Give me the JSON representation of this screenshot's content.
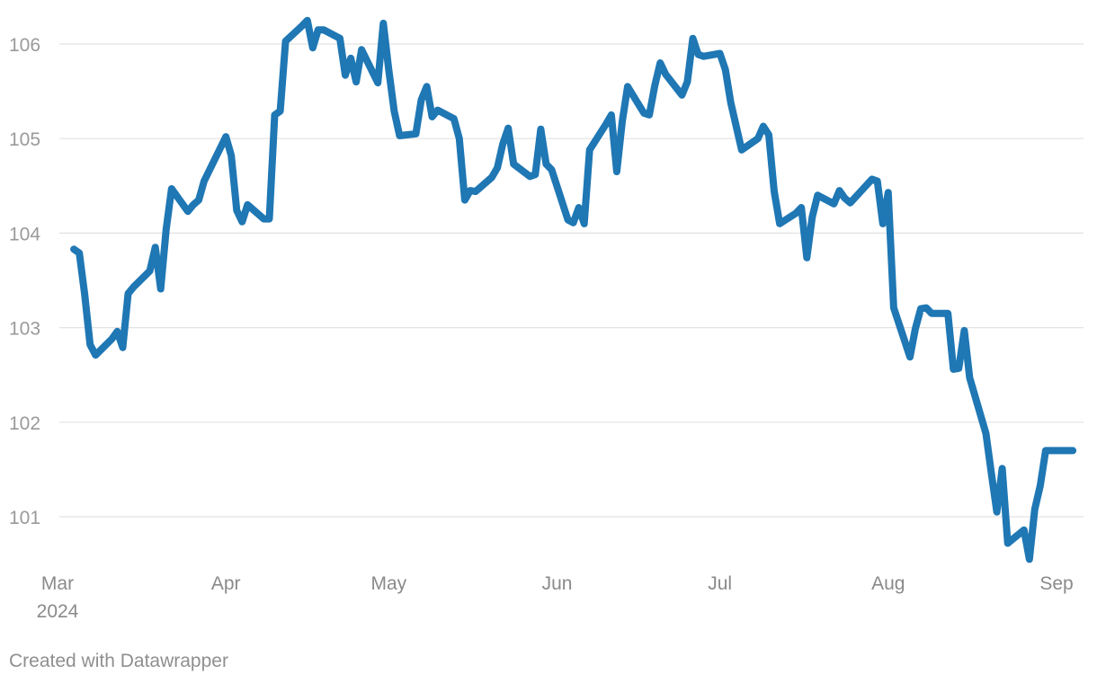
{
  "chart_data": {
    "type": "line",
    "title": "",
    "xlabel": "",
    "ylabel": "",
    "ylim": [
      100.5,
      106.4
    ],
    "yticks": [
      101,
      102,
      103,
      104,
      105,
      106
    ],
    "xticks": [
      {
        "label": "Mar",
        "sublabel": "2024",
        "date": "2024-03-01"
      },
      {
        "label": "Apr",
        "sublabel": "",
        "date": "2024-04-01"
      },
      {
        "label": "May",
        "sublabel": "",
        "date": "2024-05-01"
      },
      {
        "label": "Jun",
        "sublabel": "",
        "date": "2024-06-01"
      },
      {
        "label": "Jul",
        "sublabel": "",
        "date": "2024-07-01"
      },
      {
        "label": "Aug",
        "sublabel": "",
        "date": "2024-08-01"
      },
      {
        "label": "Sep",
        "sublabel": "",
        "date": "2024-09-01"
      }
    ],
    "grid": true,
    "series": [
      {
        "color": "#1f77b4",
        "points": [
          [
            "2024-03-04",
            103.83
          ],
          [
            "2024-03-05",
            103.79
          ],
          [
            "2024-03-06",
            103.35
          ],
          [
            "2024-03-07",
            102.82
          ],
          [
            "2024-03-08",
            102.71
          ],
          [
            "2024-03-11",
            102.88
          ],
          [
            "2024-03-12",
            102.96
          ],
          [
            "2024-03-13",
            102.79
          ],
          [
            "2024-03-14",
            103.36
          ],
          [
            "2024-03-15",
            103.43
          ],
          [
            "2024-03-18",
            103.6
          ],
          [
            "2024-03-19",
            103.85
          ],
          [
            "2024-03-20",
            103.41
          ],
          [
            "2024-03-21",
            104.04
          ],
          [
            "2024-03-22",
            104.47
          ],
          [
            "2024-03-25",
            104.23
          ],
          [
            "2024-03-26",
            104.3
          ],
          [
            "2024-03-27",
            104.35
          ],
          [
            "2024-03-28",
            104.55
          ],
          [
            "2024-04-01",
            105.02
          ],
          [
            "2024-04-02",
            104.82
          ],
          [
            "2024-04-03",
            104.24
          ],
          [
            "2024-04-04",
            104.12
          ],
          [
            "2024-04-05",
            104.3
          ],
          [
            "2024-04-08",
            104.15
          ],
          [
            "2024-04-09",
            104.15
          ],
          [
            "2024-04-10",
            105.25
          ],
          [
            "2024-04-11",
            105.29
          ],
          [
            "2024-04-12",
            106.03
          ],
          [
            "2024-04-15",
            106.19
          ],
          [
            "2024-04-16",
            106.25
          ],
          [
            "2024-04-17",
            105.96
          ],
          [
            "2024-04-18",
            106.15
          ],
          [
            "2024-04-19",
            106.15
          ],
          [
            "2024-04-22",
            106.06
          ],
          [
            "2024-04-23",
            105.67
          ],
          [
            "2024-04-24",
            105.85
          ],
          [
            "2024-04-25",
            105.6
          ],
          [
            "2024-04-26",
            105.94
          ],
          [
            "2024-04-29",
            105.59
          ],
          [
            "2024-04-30",
            106.22
          ],
          [
            "2024-05-01",
            105.73
          ],
          [
            "2024-05-02",
            105.29
          ],
          [
            "2024-05-03",
            105.03
          ],
          [
            "2024-05-06",
            105.05
          ],
          [
            "2024-05-07",
            105.41
          ],
          [
            "2024-05-08",
            105.55
          ],
          [
            "2024-05-09",
            105.23
          ],
          [
            "2024-05-10",
            105.3
          ],
          [
            "2024-05-13",
            105.21
          ],
          [
            "2024-05-14",
            105.0
          ],
          [
            "2024-05-15",
            104.35
          ],
          [
            "2024-05-16",
            104.45
          ],
          [
            "2024-05-17",
            104.44
          ],
          [
            "2024-05-20",
            104.59
          ],
          [
            "2024-05-21",
            104.69
          ],
          [
            "2024-05-22",
            104.94
          ],
          [
            "2024-05-23",
            105.11
          ],
          [
            "2024-05-24",
            104.73
          ],
          [
            "2024-05-27",
            104.6
          ],
          [
            "2024-05-28",
            104.62
          ],
          [
            "2024-05-29",
            105.1
          ],
          [
            "2024-05-30",
            104.73
          ],
          [
            "2024-05-31",
            104.67
          ],
          [
            "2024-06-03",
            104.14
          ],
          [
            "2024-06-04",
            104.11
          ],
          [
            "2024-06-05",
            104.27
          ],
          [
            "2024-06-06",
            104.1
          ],
          [
            "2024-06-07",
            104.88
          ],
          [
            "2024-06-10",
            105.15
          ],
          [
            "2024-06-11",
            105.25
          ],
          [
            "2024-06-12",
            104.65
          ],
          [
            "2024-06-13",
            105.18
          ],
          [
            "2024-06-14",
            105.55
          ],
          [
            "2024-06-17",
            105.27
          ],
          [
            "2024-06-18",
            105.25
          ],
          [
            "2024-06-19",
            105.56
          ],
          [
            "2024-06-20",
            105.8
          ],
          [
            "2024-06-21",
            105.68
          ],
          [
            "2024-06-24",
            105.46
          ],
          [
            "2024-06-25",
            105.6
          ],
          [
            "2024-06-26",
            106.06
          ],
          [
            "2024-06-27",
            105.89
          ],
          [
            "2024-06-28",
            105.87
          ],
          [
            "2024-07-01",
            105.9
          ],
          [
            "2024-07-02",
            105.73
          ],
          [
            "2024-07-03",
            105.38
          ],
          [
            "2024-07-05",
            104.88
          ],
          [
            "2024-07-08",
            105.0
          ],
          [
            "2024-07-09",
            105.13
          ],
          [
            "2024-07-10",
            105.04
          ],
          [
            "2024-07-11",
            104.44
          ],
          [
            "2024-07-12",
            104.1
          ],
          [
            "2024-07-15",
            104.21
          ],
          [
            "2024-07-16",
            104.27
          ],
          [
            "2024-07-17",
            103.74
          ],
          [
            "2024-07-18",
            104.17
          ],
          [
            "2024-07-19",
            104.4
          ],
          [
            "2024-07-22",
            104.31
          ],
          [
            "2024-07-23",
            104.45
          ],
          [
            "2024-07-24",
            104.37
          ],
          [
            "2024-07-25",
            104.32
          ],
          [
            "2024-07-29",
            104.57
          ],
          [
            "2024-07-30",
            104.55
          ],
          [
            "2024-07-31",
            104.1
          ],
          [
            "2024-08-01",
            104.43
          ],
          [
            "2024-08-02",
            103.21
          ],
          [
            "2024-08-05",
            102.69
          ],
          [
            "2024-08-06",
            102.99
          ],
          [
            "2024-08-07",
            103.2
          ],
          [
            "2024-08-08",
            103.21
          ],
          [
            "2024-08-09",
            103.15
          ],
          [
            "2024-08-12",
            103.15
          ],
          [
            "2024-08-13",
            102.56
          ],
          [
            "2024-08-14",
            102.57
          ],
          [
            "2024-08-15",
            102.97
          ],
          [
            "2024-08-16",
            102.47
          ],
          [
            "2024-08-19",
            101.88
          ],
          [
            "2024-08-20",
            101.46
          ],
          [
            "2024-08-21",
            101.05
          ],
          [
            "2024-08-22",
            101.51
          ],
          [
            "2024-08-23",
            100.72
          ],
          [
            "2024-08-26",
            100.86
          ],
          [
            "2024-08-27",
            100.55
          ],
          [
            "2024-08-28",
            101.08
          ],
          [
            "2024-08-29",
            101.33
          ],
          [
            "2024-08-30",
            101.7
          ],
          [
            "2024-09-02",
            101.7
          ],
          [
            "2024-09-03",
            101.7
          ],
          [
            "2024-09-04",
            101.7
          ]
        ]
      }
    ]
  },
  "footer": {
    "credit": "Created with Datawrapper"
  }
}
